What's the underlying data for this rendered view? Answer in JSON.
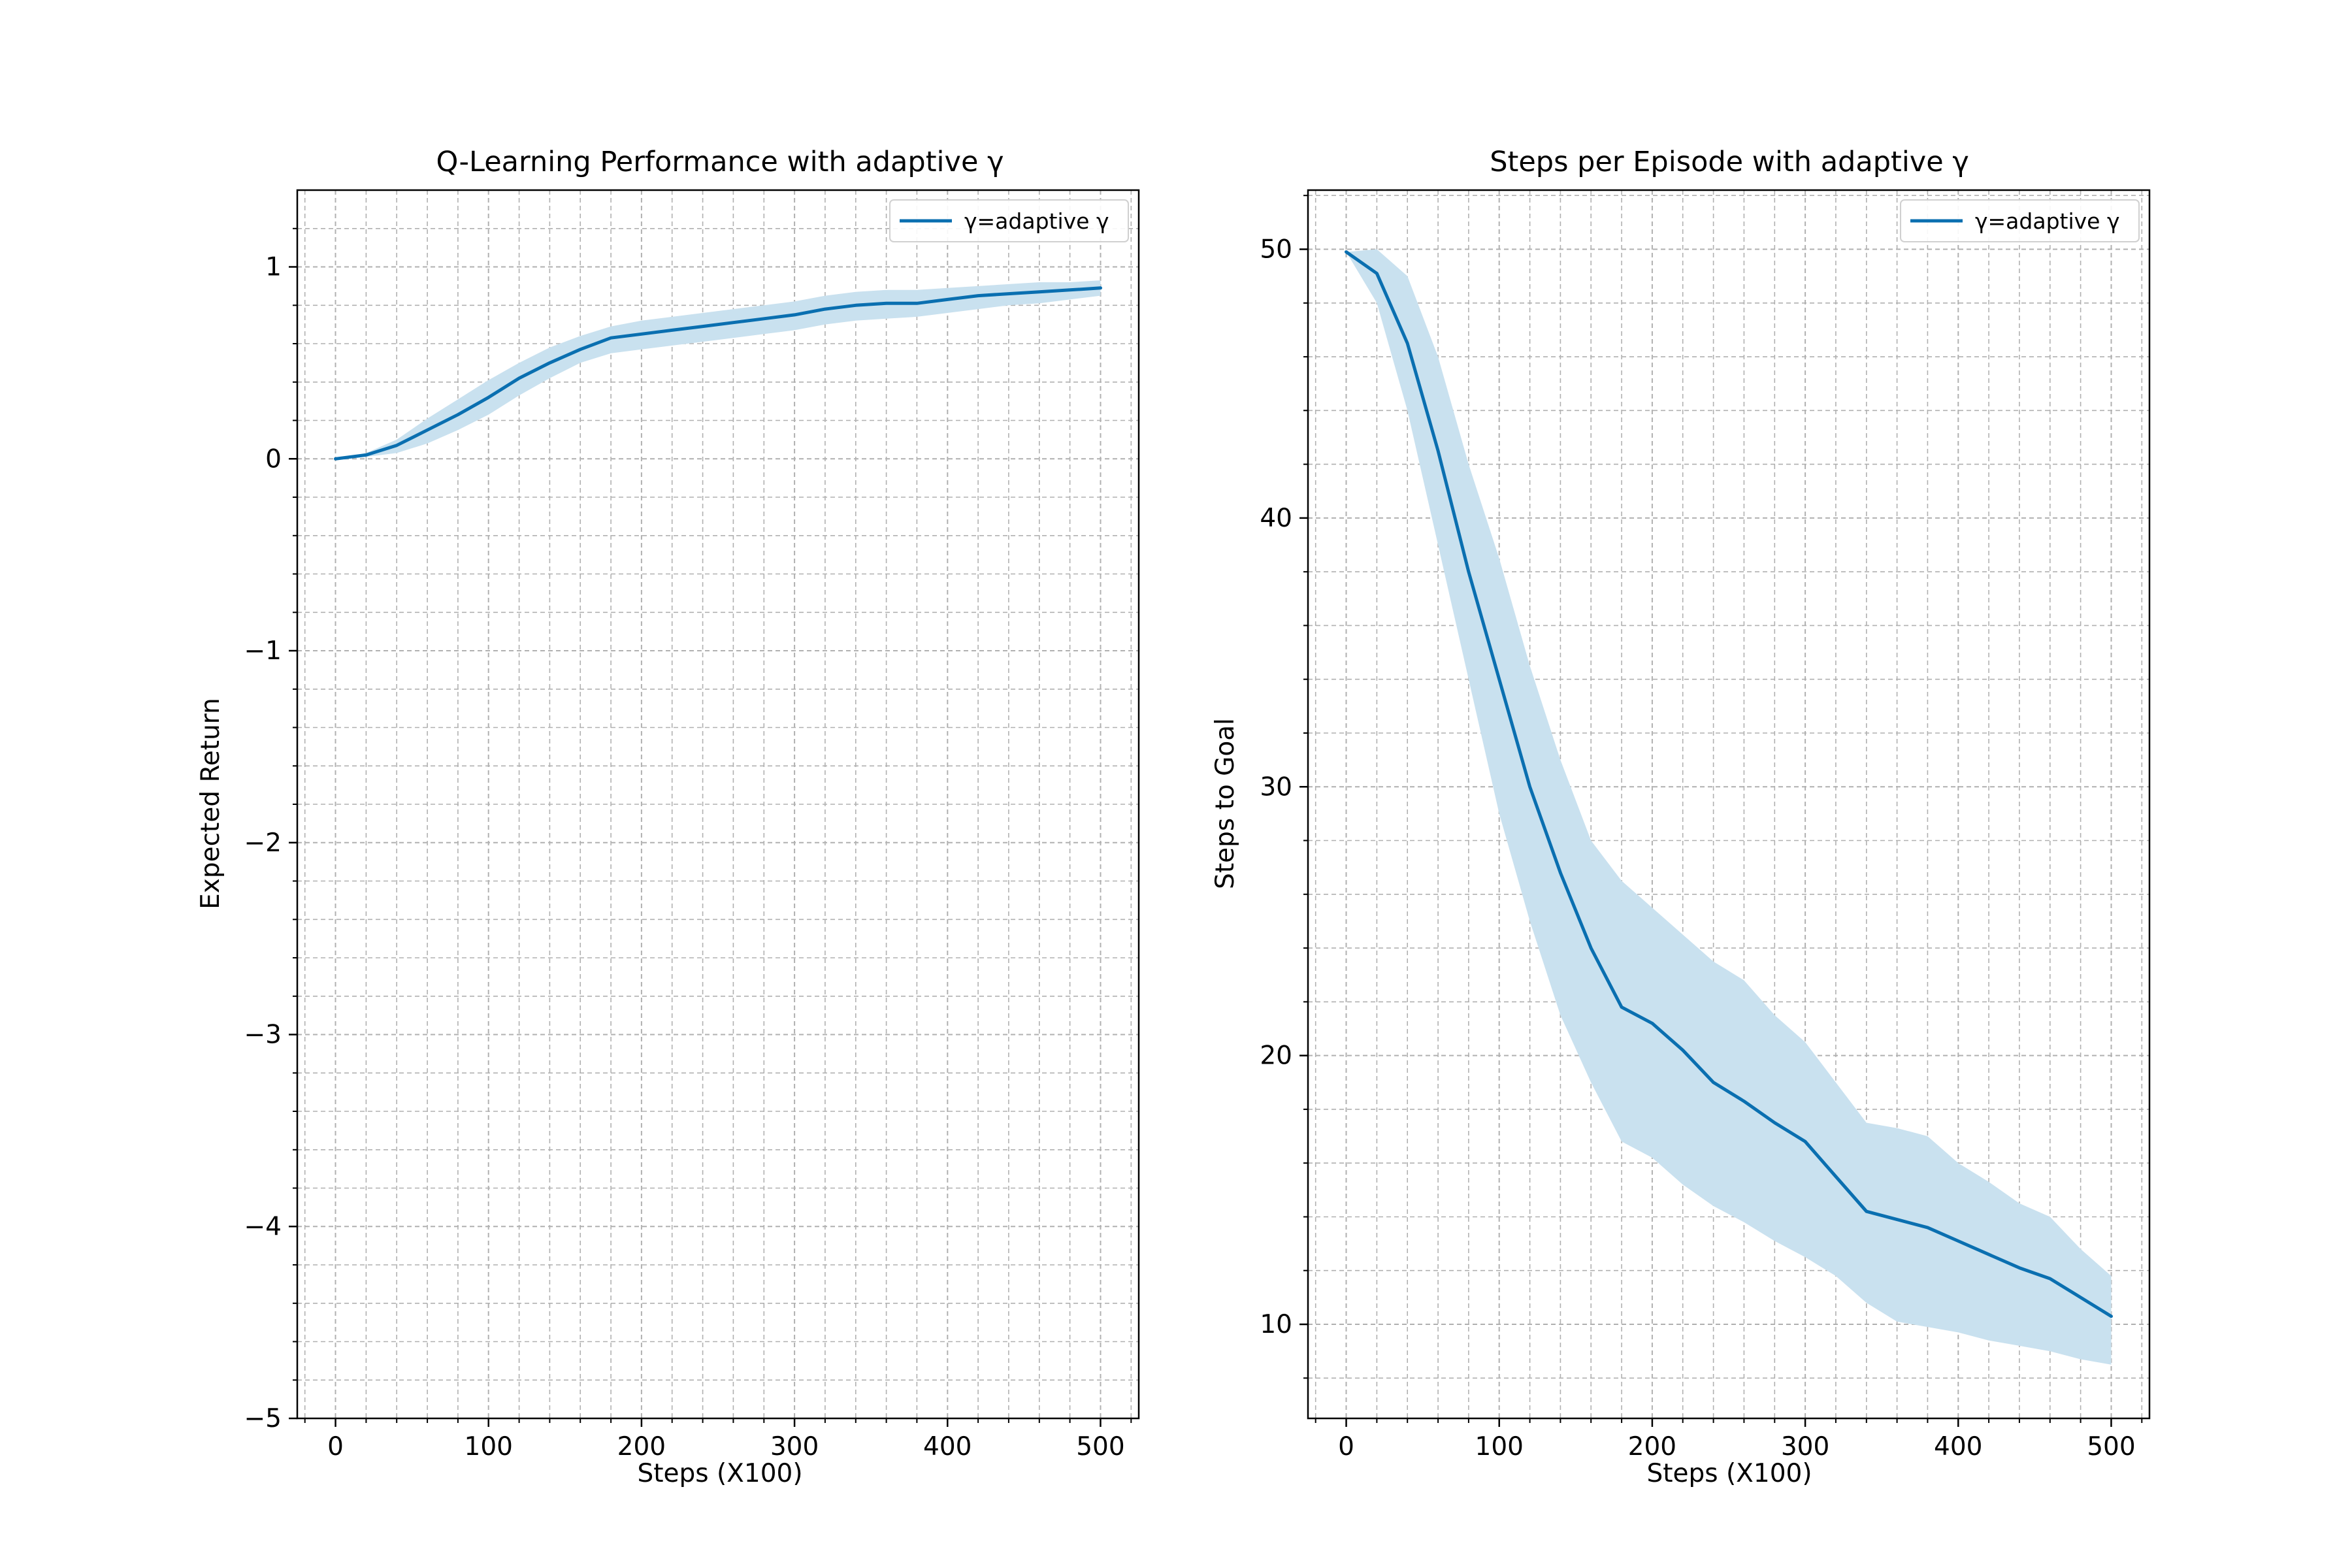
{
  "colors": {
    "line": "#0a6fb0",
    "band": "#c9e1ef",
    "grid": "#b0b0b0",
    "axis": "#000000"
  },
  "chart_data": [
    {
      "type": "line",
      "title": "Q-Learning Performance with adaptive γ",
      "xlabel": "Steps (X100)",
      "ylabel": "Expected Return",
      "xlim": [
        -25,
        525
      ],
      "ylim": [
        -5,
        1.4
      ],
      "xticks": [
        0,
        100,
        200,
        300,
        400,
        500
      ],
      "xtick_labels": [
        "0",
        "100",
        "200",
        "300",
        "400",
        "500"
      ],
      "yticks": [
        -5,
        -4,
        -3,
        -2,
        -1,
        0,
        1
      ],
      "ytick_labels": [
        "−5",
        "−4",
        "−3",
        "−2",
        "−1",
        "0",
        "1"
      ],
      "minor_x_step": 20,
      "minor_y_step": 0.2,
      "grid": true,
      "legend_position": "top-right",
      "series": [
        {
          "name": "γ=adaptive γ",
          "x": [
            0,
            20,
            40,
            60,
            80,
            100,
            120,
            140,
            160,
            180,
            200,
            220,
            240,
            260,
            280,
            300,
            320,
            340,
            360,
            380,
            400,
            420,
            440,
            460,
            480,
            500
          ],
          "values": [
            0.0,
            0.02,
            0.07,
            0.15,
            0.23,
            0.32,
            0.42,
            0.5,
            0.57,
            0.63,
            0.65,
            0.67,
            0.69,
            0.71,
            0.73,
            0.75,
            0.78,
            0.8,
            0.81,
            0.81,
            0.83,
            0.85,
            0.86,
            0.87,
            0.88,
            0.89
          ],
          "lower": [
            0.0,
            0.01,
            0.03,
            0.08,
            0.15,
            0.23,
            0.33,
            0.42,
            0.5,
            0.55,
            0.57,
            0.59,
            0.61,
            0.63,
            0.65,
            0.67,
            0.7,
            0.72,
            0.73,
            0.74,
            0.76,
            0.78,
            0.8,
            0.81,
            0.83,
            0.85
          ],
          "upper": [
            0.0,
            0.03,
            0.1,
            0.21,
            0.31,
            0.41,
            0.5,
            0.58,
            0.64,
            0.69,
            0.72,
            0.74,
            0.76,
            0.78,
            0.8,
            0.82,
            0.85,
            0.87,
            0.88,
            0.88,
            0.89,
            0.9,
            0.91,
            0.92,
            0.92,
            0.93
          ]
        }
      ]
    },
    {
      "type": "line",
      "title": "Steps per Episode with adaptive γ",
      "xlabel": "Steps (X100)",
      "ylabel": "Steps to Goal",
      "xlim": [
        -25,
        525
      ],
      "ylim": [
        6.5,
        52.2
      ],
      "xticks": [
        0,
        100,
        200,
        300,
        400,
        500
      ],
      "xtick_labels": [
        "0",
        "100",
        "200",
        "300",
        "400",
        "500"
      ],
      "yticks": [
        10,
        20,
        30,
        40,
        50
      ],
      "ytick_labels": [
        "10",
        "20",
        "30",
        "40",
        "50"
      ],
      "minor_x_step": 20,
      "minor_y_step": 2,
      "grid": true,
      "legend_position": "top-right",
      "series": [
        {
          "name": "γ=adaptive γ",
          "x": [
            0,
            20,
            40,
            60,
            80,
            100,
            120,
            140,
            160,
            180,
            200,
            220,
            240,
            260,
            280,
            300,
            320,
            340,
            360,
            380,
            400,
            420,
            440,
            460,
            480,
            500
          ],
          "values": [
            49.9,
            49.1,
            46.5,
            42.5,
            38.0,
            34.0,
            30.0,
            26.8,
            24.0,
            21.8,
            21.2,
            20.2,
            19.0,
            18.3,
            17.5,
            16.8,
            15.5,
            14.2,
            13.9,
            13.6,
            13.1,
            12.6,
            12.1,
            11.7,
            11.0,
            10.3
          ],
          "lower": [
            49.9,
            48.0,
            44.0,
            39.0,
            34.0,
            29.0,
            25.0,
            21.5,
            19.0,
            16.8,
            16.2,
            15.2,
            14.4,
            13.8,
            13.1,
            12.5,
            11.8,
            10.8,
            10.1,
            9.9,
            9.7,
            9.4,
            9.2,
            9.0,
            8.7,
            8.5
          ],
          "upper": [
            49.9,
            50.0,
            49.0,
            46.0,
            42.0,
            38.5,
            34.5,
            31.0,
            28.0,
            26.5,
            25.5,
            24.5,
            23.5,
            22.8,
            21.5,
            20.5,
            19.0,
            17.5,
            17.3,
            17.0,
            16.0,
            15.3,
            14.5,
            14.0,
            12.8,
            11.8
          ]
        }
      ]
    }
  ]
}
